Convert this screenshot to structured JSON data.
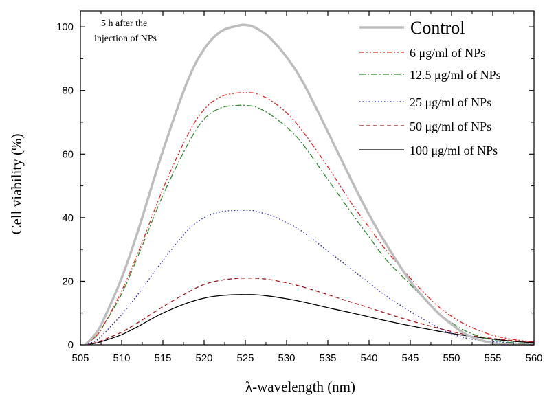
{
  "chart_data": {
    "type": "line",
    "xlabel": "λ-wavelength (nm)",
    "ylabel": "Cell viability (%)",
    "xlim": [
      505,
      560
    ],
    "ylim": [
      0,
      105
    ],
    "xticks": [
      505,
      510,
      515,
      520,
      525,
      530,
      535,
      540,
      545,
      550,
      555,
      560
    ],
    "yticks": [
      0,
      20,
      40,
      60,
      80,
      100
    ],
    "grid": false,
    "legend_position": "top-right",
    "annotation": [
      "5 h after the",
      "injection of NPs"
    ],
    "x": [
      505.6,
      507,
      508,
      510,
      512,
      515,
      518,
      520,
      522,
      524,
      525,
      526,
      527,
      528,
      530,
      532,
      535,
      538,
      540,
      542,
      545,
      548,
      550,
      552,
      555,
      558,
      560
    ],
    "series": [
      {
        "name": "Control",
        "color": "#bdbdbd",
        "dash": "",
        "width": 3.5,
        "values": [
          0,
          4,
          9,
          21,
          36,
          61,
          83,
          93,
          98.5,
          100.3,
          100.6,
          100,
          98.5,
          96.5,
          90.5,
          82.5,
          67,
          51,
          41,
          32,
          20,
          11,
          6.5,
          3,
          0.5,
          0,
          0
        ]
      },
      {
        "name": "6 μg/ml of NPs",
        "color": "#e8201c",
        "dash": "7 3 2 3 2 3",
        "width": 1.3,
        "values": [
          0,
          3,
          7,
          17,
          29,
          49,
          66,
          74,
          78,
          79.2,
          79.3,
          79.2,
          78.3,
          77,
          73,
          67,
          56,
          44,
          37,
          30,
          21,
          13,
          9,
          6,
          3,
          1.5,
          1
        ]
      },
      {
        "name": "12.5 μg/ml of NPs",
        "color": "#2d8c2d",
        "dash": "9 3 2 3",
        "width": 1.3,
        "values": [
          0,
          3,
          7,
          16,
          28,
          47,
          63,
          71,
          74.5,
          75.3,
          75.3,
          75,
          74,
          72.5,
          68.5,
          63,
          52,
          41,
          34,
          27,
          19,
          11,
          7,
          4,
          1.5,
          0.5,
          0.3
        ]
      },
      {
        "name": "25 μg/ml of NPs",
        "color": "#2020c0",
        "dash": "1.5 3",
        "width": 1.3,
        "values": [
          0,
          1.5,
          4,
          9.5,
          16,
          26.5,
          36,
          40,
          41.8,
          42.3,
          42.3,
          42.2,
          41.5,
          40.8,
          38.5,
          35.5,
          29.5,
          23.5,
          19.5,
          15.5,
          10.5,
          6,
          3.5,
          2,
          1,
          0.5,
          0.3
        ]
      },
      {
        "name": "50 μg/ml of NPs",
        "color": "#a8141a",
        "dash": "6 4",
        "width": 1.3,
        "values": [
          0,
          0.8,
          1.8,
          4,
          7,
          12,
          16.5,
          19,
          20.3,
          20.9,
          21,
          21,
          20.8,
          20.5,
          19.5,
          18.2,
          15.8,
          13.3,
          11.7,
          10,
          7.6,
          5.5,
          4.2,
          3.1,
          2,
          1.2,
          0.9
        ]
      },
      {
        "name": "100 μg/ml of NPs",
        "color": "#000000",
        "dash": "",
        "width": 1.3,
        "values": [
          0,
          0.6,
          1.4,
          3.2,
          5.8,
          10,
          13.2,
          14.7,
          15.5,
          15.8,
          15.8,
          15.8,
          15.6,
          15.3,
          14.5,
          13.5,
          11.7,
          10,
          8.8,
          7.6,
          6,
          4.5,
          3.6,
          2.8,
          1.8,
          1,
          0.7
        ]
      }
    ]
  }
}
